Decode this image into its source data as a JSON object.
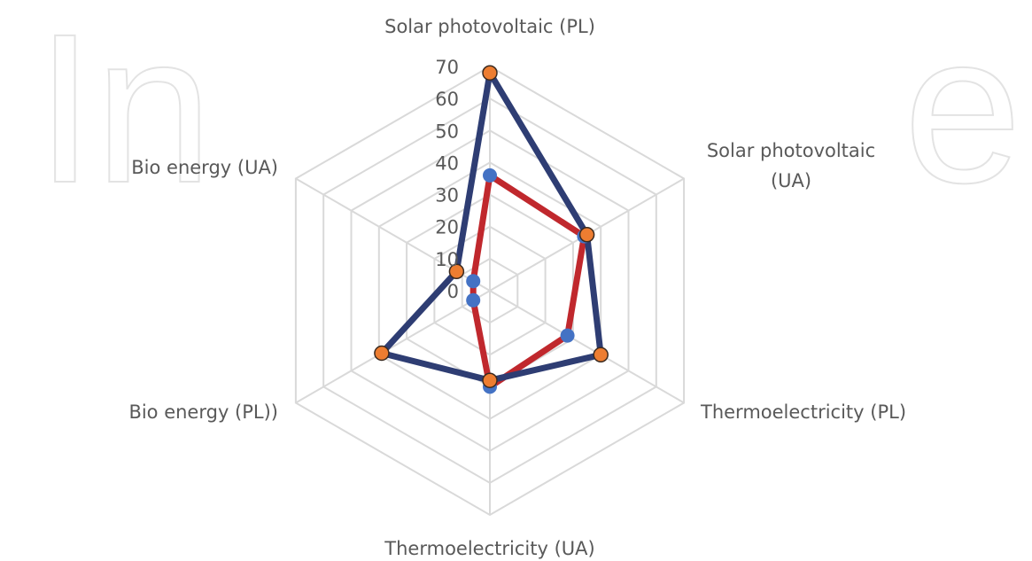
{
  "chart_data": {
    "type": "radar",
    "categories": [
      "Solar photovoltaic (PL)",
      "Solar photovoltaic (UA)",
      "Thermoelectricity (PL)",
      "Thermoelectricity (UA)",
      "Bio energy (PL))",
      "Bio energy (UA)"
    ],
    "category_lines": [
      [
        "Solar photovoltaic (PL)"
      ],
      [
        "Solar photovoltaic",
        "(UA)"
      ],
      [
        "Thermoelectricity (PL)"
      ],
      [
        "Thermoelectricity (UA)"
      ],
      [
        "Bio energy (PL))"
      ],
      [
        "Bio energy (UA)"
      ]
    ],
    "rmax": 70,
    "ticks": [
      "0",
      "10",
      "20",
      "30",
      "40",
      "50",
      "60",
      "70"
    ],
    "tick_values": [
      0,
      10,
      20,
      30,
      40,
      50,
      60,
      70
    ],
    "series": [
      {
        "values": [
          36,
          34,
          28,
          30,
          6,
          6
        ],
        "line_color": "#c0282d",
        "marker_color": "#4472c4"
      },
      {
        "values": [
          68,
          35,
          40,
          28,
          39,
          12
        ],
        "line_color": "#2e3d73",
        "marker_color": "#ed7d31"
      }
    ],
    "grid": true,
    "legend": "none"
  }
}
